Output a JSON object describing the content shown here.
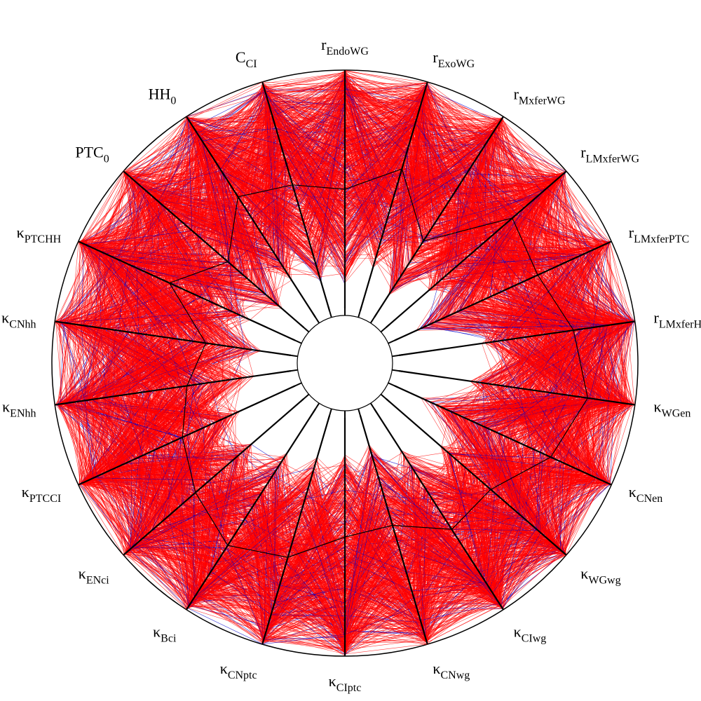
{
  "chart_data": {
    "type": "parallel-coordinates-radial",
    "colors": {
      "primary_lines": "#ff0000",
      "secondary_lines": "#0000cc",
      "axis_lines": "#000000",
      "median_polyline": "#000000",
      "background": "#ffffff"
    },
    "axes": [
      {
        "base": "r",
        "sub": "EndoWG"
      },
      {
        "base": "r",
        "sub": "ExoWG"
      },
      {
        "base": "r",
        "sub": "MxferWG"
      },
      {
        "base": "r",
        "sub": "LMxferWG"
      },
      {
        "base": "r",
        "sub": "LMxferPTC"
      },
      {
        "base": "r",
        "sub": "LMxferHH"
      },
      {
        "base": "κ",
        "sub": "WGen"
      },
      {
        "base": "κ",
        "sub": "CNen"
      },
      {
        "base": "κ",
        "sub": "WGwg"
      },
      {
        "base": "κ",
        "sub": "CIwg"
      },
      {
        "base": "κ",
        "sub": "CNwg"
      },
      {
        "base": "κ",
        "sub": "CIptc"
      },
      {
        "base": "κ",
        "sub": "CNptc"
      },
      {
        "base": "κ",
        "sub": "Bci"
      },
      {
        "base": "κ",
        "sub": "ENci"
      },
      {
        "base": "κ",
        "sub": "PTCCI"
      },
      {
        "base": "κ",
        "sub": "ENhh"
      },
      {
        "base": "κ",
        "sub": "CNhh"
      },
      {
        "base": "κ",
        "sub": "PTCHH"
      },
      {
        "base": "PTC",
        "sub": "0"
      },
      {
        "base": "HH",
        "sub": "0"
      },
      {
        "base": "C",
        "sub": "CI"
      }
    ],
    "median_profile": [
      0.5,
      0.62,
      0.38,
      0.7,
      0.66,
      0.74,
      0.8,
      0.72,
      0.58,
      0.6,
      0.48,
      0.5,
      0.62,
      0.68,
      0.6,
      0.52,
      0.44,
      0.36,
      0.58,
      0.42,
      0.6,
      0.55
    ],
    "inner_profile": [
      0.1,
      0.18,
      0.1,
      0.22,
      0.1,
      0.35,
      0.3,
      0.12,
      0.3,
      0.2,
      0.12,
      0.15,
      0.18,
      0.22,
      0.28,
      0.25,
      0.15,
      0.12,
      0.2,
      0.1,
      0.18,
      0.12
    ],
    "num_lines": 700,
    "secondary_fraction": 0.08,
    "grid": false,
    "legend": "none"
  }
}
